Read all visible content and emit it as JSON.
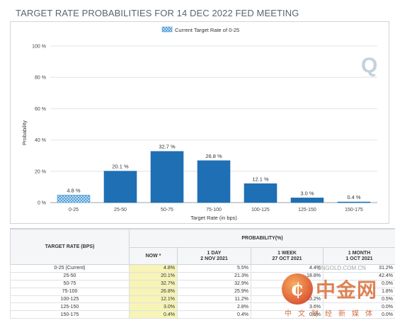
{
  "title": "TARGET RATE PROBABILITIES FOR 14 DEC 2022 FED MEETING",
  "colors": {
    "bar": "#1f6fb4",
    "current_bar_hatch": "#4f9fd8",
    "now_column": "#f7f4b6",
    "grid": "#d9dde1"
  },
  "chart_data": {
    "type": "bar",
    "title": "TARGET RATE PROBABILITIES FOR 14 DEC 2022 FED MEETING",
    "xlabel": "Target Rate (in bps)",
    "ylabel": "Probability",
    "ylim": [
      0,
      100
    ],
    "yticks": [
      "0 %",
      "20 %",
      "40 %",
      "60 %",
      "80 %",
      "100 %"
    ],
    "ytick_values": [
      0,
      20,
      40,
      60,
      80,
      100
    ],
    "legend": {
      "label": "Current Target Rate of 0-25",
      "placement": "top-center"
    },
    "categories": [
      "0-25",
      "25-50",
      "50-75",
      "75-100",
      "100-125",
      "125-150",
      "150-175"
    ],
    "values": [
      4.8,
      20.1,
      32.7,
      26.8,
      12.1,
      3.0,
      0.4
    ],
    "data_labels": [
      "4.8 %",
      "20.1 %",
      "32.7 %",
      "26.8 %",
      "12.1 %",
      "3.0 %",
      "0.4 %"
    ],
    "highlight_index": 0,
    "grid": true
  },
  "table": {
    "col_target": "TARGET RATE (BPS)",
    "col_probability": "PROBABILITY(%)",
    "sub_headers": [
      {
        "line1": "NOW *",
        "line2": ""
      },
      {
        "line1": "1 DAY",
        "line2": "2 NOV 2021"
      },
      {
        "line1": "1 WEEK",
        "line2": "27 OCT 2021"
      },
      {
        "line1": "1 MONTH",
        "line2": "1 OCT 2021"
      }
    ],
    "rows": [
      {
        "rate": "0-25 (Current)",
        "now": "4.8%",
        "day": "5.5%",
        "week": "4.4%",
        "month": "31.2%"
      },
      {
        "rate": "25-50",
        "now": "20.1%",
        "day": "21.3%",
        "week": "18.8%",
        "month": "42.4%"
      },
      {
        "rate": "50-75",
        "now": "32.7%",
        "day": "32.9%",
        "week": "",
        "month": "0.0%"
      },
      {
        "rate": "75-100",
        "now": "26.8%",
        "day": "25.9%",
        "week": "",
        "month": "1.8%"
      },
      {
        "rate": "100-125",
        "now": "12.1%",
        "day": "11.2%",
        "week": "13.2%",
        "month": "0.5%"
      },
      {
        "rate": "125-150",
        "now": "3.0%",
        "day": "2.8%",
        "week": "3.6%",
        "month": "0.0%"
      },
      {
        "rate": "150-175",
        "now": "0.4%",
        "day": "0.4%",
        "week": "0.6%",
        "month": "0.0%"
      }
    ]
  },
  "watermark": {
    "url": "CNGOLD.COM.CN",
    "brand": "中金网",
    "subtitle": "中文财经新媒体"
  },
  "logo_letter": "Q"
}
